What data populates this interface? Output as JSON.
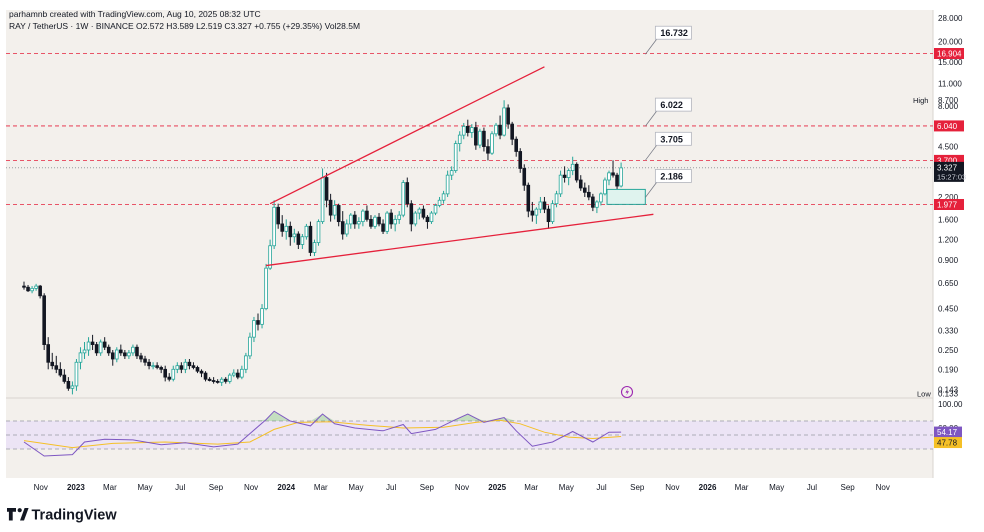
{
  "header": {
    "credit": "parhamnb created with TradingView.com, Aug 10, 2025 08:32 UTC",
    "symbol_line": "RAY / TetherUS · 1W · BINANCE  O2.572  H3.589  L2.519  C3.327  +0.755 (+29.35%)  Vol28.5M"
  },
  "footer": {
    "brand": "TradingView"
  },
  "colors": {
    "bull": "#26a69a",
    "bear": "#131722",
    "level": "#e5213b",
    "rsi": "#7e57c2",
    "rsi_ma": "#f5c026",
    "rsi_band": "#ece4f5",
    "box": "#26a69a"
  },
  "chart_data": {
    "type": "candlestick",
    "scale": "log",
    "ylim": [
      0.13,
      28
    ],
    "y_ticks": [
      "28.000",
      "20.000",
      "15.000",
      "11.000",
      "8.000",
      "6.000",
      "4.500",
      "3.300",
      "2.200",
      "1.600",
      "1.200",
      "0.900",
      "0.650",
      "0.450",
      "0.330",
      "0.250",
      "0.190",
      "0.143"
    ],
    "x_ticks": [
      "Nov",
      "2023",
      "Mar",
      "May",
      "Jul",
      "Sep",
      "Nov",
      "2024",
      "Mar",
      "May",
      "Jul",
      "Sep",
      "Nov",
      "2025",
      "Mar",
      "May",
      "Jul",
      "Sep",
      "Nov",
      "2026",
      "Mar",
      "May",
      "Jul",
      "Sep",
      "Nov"
    ],
    "price_labels": [
      {
        "label": "16.904",
        "value": 16.904
      },
      {
        "label": "6.040",
        "value": 6.04
      },
      {
        "label": "3.700",
        "value": 3.7
      },
      {
        "label": "1.977",
        "value": 1.977
      }
    ],
    "current": {
      "label": "3.327",
      "value": 3.327,
      "countdown": "15:27:03"
    },
    "high": {
      "text": "High",
      "value": "8.700"
    },
    "low": {
      "text": "Low",
      "value": "0.133"
    },
    "levels": [
      16.904,
      6.04,
      3.7,
      1.977
    ],
    "callouts": [
      {
        "text": "16.732",
        "value": 16.732
      },
      {
        "text": "6.022",
        "value": 6.022
      },
      {
        "text": "3.705",
        "value": 3.705
      },
      {
        "text": "2.186",
        "value": 2.186
      }
    ],
    "support_box": {
      "y_low": 1.98,
      "y_high": 2.45
    },
    "channel": {
      "upper": [
        [
          "2023-12-04",
          2.0
        ],
        [
          "2025-03-24",
          14.0
        ]
      ],
      "lower": [
        [
          "2023-11-27",
          0.83
        ],
        [
          "2025-09-29",
          1.72
        ]
      ]
    },
    "candles": [
      [
        "2022-10-03",
        0.62,
        0.66,
        0.59,
        0.61
      ],
      [
        "2022-10-10",
        0.61,
        0.63,
        0.57,
        0.58
      ],
      [
        "2022-10-17",
        0.58,
        0.62,
        0.56,
        0.6
      ],
      [
        "2022-10-24",
        0.6,
        0.64,
        0.58,
        0.62
      ],
      [
        "2022-10-31",
        0.62,
        0.63,
        0.52,
        0.54
      ],
      [
        "2022-11-07",
        0.54,
        0.56,
        0.25,
        0.27
      ],
      [
        "2022-11-14",
        0.27,
        0.3,
        0.19,
        0.21
      ],
      [
        "2022-11-21",
        0.21,
        0.24,
        0.19,
        0.2
      ],
      [
        "2022-11-28",
        0.2,
        0.23,
        0.18,
        0.19
      ],
      [
        "2022-12-05",
        0.19,
        0.21,
        0.17,
        0.175
      ],
      [
        "2022-12-12",
        0.175,
        0.19,
        0.155,
        0.16
      ],
      [
        "2022-12-19",
        0.16,
        0.17,
        0.14,
        0.145
      ],
      [
        "2022-12-26",
        0.145,
        0.16,
        0.133,
        0.15
      ],
      [
        "2023-01-02",
        0.15,
        0.22,
        0.14,
        0.21
      ],
      [
        "2023-01-09",
        0.21,
        0.26,
        0.19,
        0.24
      ],
      [
        "2023-01-16",
        0.24,
        0.28,
        0.22,
        0.25
      ],
      [
        "2023-01-23",
        0.25,
        0.3,
        0.23,
        0.28
      ],
      [
        "2023-01-30",
        0.28,
        0.31,
        0.25,
        0.27
      ],
      [
        "2023-02-06",
        0.27,
        0.28,
        0.23,
        0.24
      ],
      [
        "2023-02-13",
        0.24,
        0.29,
        0.23,
        0.28
      ],
      [
        "2023-02-20",
        0.28,
        0.3,
        0.25,
        0.26
      ],
      [
        "2023-02-27",
        0.26,
        0.27,
        0.23,
        0.24
      ],
      [
        "2023-03-06",
        0.24,
        0.25,
        0.2,
        0.22
      ],
      [
        "2023-03-13",
        0.22,
        0.26,
        0.21,
        0.25
      ],
      [
        "2023-03-20",
        0.25,
        0.27,
        0.23,
        0.24
      ],
      [
        "2023-03-27",
        0.24,
        0.25,
        0.22,
        0.23
      ],
      [
        "2023-04-03",
        0.23,
        0.25,
        0.22,
        0.24
      ],
      [
        "2023-04-10",
        0.24,
        0.27,
        0.23,
        0.26
      ],
      [
        "2023-04-17",
        0.26,
        0.27,
        0.22,
        0.23
      ],
      [
        "2023-04-24",
        0.23,
        0.24,
        0.21,
        0.22
      ],
      [
        "2023-05-01",
        0.22,
        0.23,
        0.2,
        0.21
      ],
      [
        "2023-05-08",
        0.21,
        0.22,
        0.19,
        0.2
      ],
      [
        "2023-05-15",
        0.2,
        0.21,
        0.19,
        0.2
      ],
      [
        "2023-05-22",
        0.2,
        0.21,
        0.19,
        0.195
      ],
      [
        "2023-05-29",
        0.195,
        0.2,
        0.18,
        0.19
      ],
      [
        "2023-06-05",
        0.19,
        0.2,
        0.16,
        0.17
      ],
      [
        "2023-06-12",
        0.17,
        0.18,
        0.16,
        0.165
      ],
      [
        "2023-06-19",
        0.165,
        0.2,
        0.16,
        0.19
      ],
      [
        "2023-06-26",
        0.19,
        0.21,
        0.18,
        0.2
      ],
      [
        "2023-07-03",
        0.2,
        0.21,
        0.18,
        0.19
      ],
      [
        "2023-07-10",
        0.19,
        0.22,
        0.18,
        0.21
      ],
      [
        "2023-07-17",
        0.21,
        0.22,
        0.19,
        0.2
      ],
      [
        "2023-07-24",
        0.2,
        0.21,
        0.19,
        0.195
      ],
      [
        "2023-07-31",
        0.195,
        0.2,
        0.18,
        0.185
      ],
      [
        "2023-08-07",
        0.185,
        0.19,
        0.17,
        0.18
      ],
      [
        "2023-08-14",
        0.18,
        0.185,
        0.16,
        0.165
      ],
      [
        "2023-08-21",
        0.165,
        0.17,
        0.16,
        0.162
      ],
      [
        "2023-08-28",
        0.162,
        0.17,
        0.155,
        0.16
      ],
      [
        "2023-09-04",
        0.16,
        0.165,
        0.155,
        0.158
      ],
      [
        "2023-09-11",
        0.158,
        0.17,
        0.15,
        0.165
      ],
      [
        "2023-09-18",
        0.165,
        0.17,
        0.155,
        0.16
      ],
      [
        "2023-09-25",
        0.16,
        0.18,
        0.155,
        0.175
      ],
      [
        "2023-10-02",
        0.175,
        0.19,
        0.17,
        0.18
      ],
      [
        "2023-10-09",
        0.18,
        0.19,
        0.165,
        0.17
      ],
      [
        "2023-10-16",
        0.17,
        0.2,
        0.165,
        0.19
      ],
      [
        "2023-10-23",
        0.19,
        0.24,
        0.18,
        0.23
      ],
      [
        "2023-10-30",
        0.23,
        0.32,
        0.22,
        0.3
      ],
      [
        "2023-11-06",
        0.3,
        0.4,
        0.28,
        0.38
      ],
      [
        "2023-11-13",
        0.38,
        0.42,
        0.33,
        0.36
      ],
      [
        "2023-11-20",
        0.36,
        0.48,
        0.34,
        0.45
      ],
      [
        "2023-11-27",
        0.45,
        0.85,
        0.44,
        0.8
      ],
      [
        "2023-12-04",
        0.8,
        1.2,
        0.78,
        1.1
      ],
      [
        "2023-12-11",
        1.1,
        2.1,
        1.05,
        1.9
      ],
      [
        "2023-12-18",
        1.9,
        2.0,
        1.4,
        1.5
      ],
      [
        "2023-12-25",
        1.5,
        1.7,
        1.25,
        1.35
      ],
      [
        "2024-01-01",
        1.35,
        1.6,
        1.2,
        1.45
      ],
      [
        "2024-01-08",
        1.45,
        1.55,
        1.1,
        1.25
      ],
      [
        "2024-01-15",
        1.25,
        1.4,
        1.15,
        1.3
      ],
      [
        "2024-01-22",
        1.3,
        1.35,
        1.05,
        1.12
      ],
      [
        "2024-01-29",
        1.12,
        1.3,
        1.05,
        1.25
      ],
      [
        "2024-02-05",
        1.25,
        1.5,
        1.2,
        1.45
      ],
      [
        "2024-02-12",
        1.45,
        1.55,
        0.95,
        1.0
      ],
      [
        "2024-02-19",
        1.0,
        1.2,
        0.95,
        1.15
      ],
      [
        "2024-02-26",
        1.15,
        1.6,
        1.1,
        1.55
      ],
      [
        "2024-03-04",
        1.55,
        3.3,
        1.5,
        2.9
      ],
      [
        "2024-03-11",
        2.9,
        3.1,
        1.9,
        2.1
      ],
      [
        "2024-03-18",
        2.1,
        2.3,
        1.55,
        1.7
      ],
      [
        "2024-03-25",
        1.7,
        2.1,
        1.6,
        1.95
      ],
      [
        "2024-04-01",
        1.95,
        2.0,
        1.45,
        1.55
      ],
      [
        "2024-04-08",
        1.55,
        1.8,
        1.2,
        1.3
      ],
      [
        "2024-04-15",
        1.3,
        1.6,
        1.25,
        1.5
      ],
      [
        "2024-04-22",
        1.5,
        1.75,
        1.4,
        1.7
      ],
      [
        "2024-04-29",
        1.7,
        1.8,
        1.4,
        1.5
      ],
      [
        "2024-05-06",
        1.5,
        1.65,
        1.4,
        1.55
      ],
      [
        "2024-05-13",
        1.55,
        1.85,
        1.45,
        1.8
      ],
      [
        "2024-05-20",
        1.8,
        1.95,
        1.55,
        1.6
      ],
      [
        "2024-05-27",
        1.6,
        1.7,
        1.4,
        1.45
      ],
      [
        "2024-06-03",
        1.45,
        1.7,
        1.4,
        1.65
      ],
      [
        "2024-06-10",
        1.65,
        1.75,
        1.45,
        1.5
      ],
      [
        "2024-06-17",
        1.5,
        1.6,
        1.3,
        1.35
      ],
      [
        "2024-06-24",
        1.35,
        1.8,
        1.3,
        1.75
      ],
      [
        "2024-07-01",
        1.75,
        1.85,
        1.4,
        1.5
      ],
      [
        "2024-07-08",
        1.5,
        1.7,
        1.35,
        1.6
      ],
      [
        "2024-07-15",
        1.6,
        1.8,
        1.5,
        1.7
      ],
      [
        "2024-07-22",
        1.7,
        2.8,
        1.65,
        2.7
      ],
      [
        "2024-07-29",
        2.7,
        2.9,
        1.9,
        2.0
      ],
      [
        "2024-08-05",
        2.0,
        2.1,
        1.35,
        1.5
      ],
      [
        "2024-08-12",
        1.5,
        1.8,
        1.45,
        1.75
      ],
      [
        "2024-08-19",
        1.75,
        1.9,
        1.6,
        1.85
      ],
      [
        "2024-08-26",
        1.85,
        1.95,
        1.6,
        1.65
      ],
      [
        "2024-09-02",
        1.65,
        1.7,
        1.4,
        1.55
      ],
      [
        "2024-09-09",
        1.55,
        1.8,
        1.5,
        1.75
      ],
      [
        "2024-09-16",
        1.75,
        2.0,
        1.7,
        1.95
      ],
      [
        "2024-09-23",
        1.95,
        2.2,
        1.9,
        2.1
      ],
      [
        "2024-09-30",
        2.1,
        2.4,
        2.0,
        2.3
      ],
      [
        "2024-10-07",
        2.3,
        3.2,
        2.2,
        3.0
      ],
      [
        "2024-10-14",
        3.0,
        3.4,
        2.8,
        3.2
      ],
      [
        "2024-10-21",
        3.2,
        4.9,
        3.1,
        4.7
      ],
      [
        "2024-10-28",
        4.7,
        5.6,
        4.2,
        5.3
      ],
      [
        "2024-11-04",
        5.3,
        6.3,
        5.0,
        6.0
      ],
      [
        "2024-11-11",
        6.0,
        6.6,
        5.2,
        5.5
      ],
      [
        "2024-11-18",
        5.5,
        6.2,
        5.1,
        5.9
      ],
      [
        "2024-11-25",
        5.9,
        6.4,
        4.3,
        4.6
      ],
      [
        "2024-12-02",
        4.6,
        5.8,
        4.4,
        5.6
      ],
      [
        "2024-12-09",
        5.6,
        5.9,
        4.2,
        4.5
      ],
      [
        "2024-12-16",
        4.5,
        5.0,
        3.7,
        4.1
      ],
      [
        "2024-12-23",
        4.1,
        5.6,
        4.0,
        5.4
      ],
      [
        "2024-12-30",
        5.4,
        6.3,
        5.2,
        6.1
      ],
      [
        "2025-01-06",
        6.1,
        7.0,
        5.0,
        5.3
      ],
      [
        "2025-01-13",
        5.3,
        8.7,
        5.2,
        7.8
      ],
      [
        "2025-01-20",
        7.8,
        8.2,
        5.8,
        6.2
      ],
      [
        "2025-01-27",
        6.2,
        6.4,
        4.6,
        5.0
      ],
      [
        "2025-02-03",
        5.0,
        5.2,
        3.9,
        4.2
      ],
      [
        "2025-02-10",
        4.2,
        4.4,
        3.1,
        3.3
      ],
      [
        "2025-02-17",
        3.3,
        3.5,
        2.4,
        2.6
      ],
      [
        "2025-02-24",
        2.6,
        2.7,
        1.65,
        1.8
      ],
      [
        "2025-03-03",
        1.8,
        2.05,
        1.55,
        1.7
      ],
      [
        "2025-03-10",
        1.7,
        1.9,
        1.5,
        1.85
      ],
      [
        "2025-03-17",
        1.85,
        2.2,
        1.75,
        2.05
      ],
      [
        "2025-03-24",
        2.05,
        2.2,
        1.75,
        1.85
      ],
      [
        "2025-03-31",
        1.85,
        1.95,
        1.4,
        1.55
      ],
      [
        "2025-04-07",
        1.55,
        2.1,
        1.5,
        2.0
      ],
      [
        "2025-04-14",
        2.0,
        2.4,
        1.9,
        2.3
      ],
      [
        "2025-04-21",
        2.3,
        3.2,
        2.2,
        3.0
      ],
      [
        "2025-04-28",
        3.0,
        3.4,
        2.7,
        2.9
      ],
      [
        "2025-05-05",
        2.9,
        3.3,
        2.6,
        3.2
      ],
      [
        "2025-05-12",
        3.2,
        3.9,
        3.0,
        3.5
      ],
      [
        "2025-05-19",
        3.5,
        3.6,
        2.7,
        2.8
      ],
      [
        "2025-05-26",
        2.8,
        3.0,
        2.4,
        2.5
      ],
      [
        "2025-06-02",
        2.5,
        2.7,
        2.2,
        2.35
      ],
      [
        "2025-06-09",
        2.35,
        2.6,
        2.1,
        2.2
      ],
      [
        "2025-06-16",
        2.2,
        2.3,
        1.8,
        1.9
      ],
      [
        "2025-06-23",
        1.9,
        2.1,
        1.75,
        2.05
      ],
      [
        "2025-06-30",
        2.05,
        2.35,
        1.95,
        2.3
      ],
      [
        "2025-07-07",
        2.3,
        2.9,
        2.25,
        2.8
      ],
      [
        "2025-07-14",
        2.8,
        3.2,
        2.6,
        3.1
      ],
      [
        "2025-07-21",
        3.1,
        3.7,
        2.9,
        3.0
      ],
      [
        "2025-07-28",
        3.0,
        3.1,
        2.4,
        2.57
      ],
      [
        "2025-08-04",
        2.572,
        3.589,
        2.519,
        3.327
      ]
    ],
    "rsi": {
      "values": [
        "54.17",
        "47.78"
      ],
      "ticks": [
        "100.00",
        "60.00"
      ],
      "ylim": [
        0,
        100
      ],
      "band": [
        30,
        70
      ],
      "line": [
        [
          "2022-10-03",
          40
        ],
        [
          "2022-11-07",
          20
        ],
        [
          "2022-12-26",
          22
        ],
        [
          "2023-01-16",
          40
        ],
        [
          "2023-02-20",
          44
        ],
        [
          "2023-04-10",
          43
        ],
        [
          "2023-05-29",
          36
        ],
        [
          "2023-07-10",
          39
        ],
        [
          "2023-08-28",
          33
        ],
        [
          "2023-10-09",
          37
        ],
        [
          "2023-10-30",
          52
        ],
        [
          "2023-11-27",
          72
        ],
        [
          "2023-12-11",
          84
        ],
        [
          "2024-01-08",
          70
        ],
        [
          "2024-02-12",
          63
        ],
        [
          "2024-03-04",
          80
        ],
        [
          "2024-03-25",
          66
        ],
        [
          "2024-04-29",
          60
        ],
        [
          "2024-06-17",
          56
        ],
        [
          "2024-07-22",
          65
        ],
        [
          "2024-08-05",
          52
        ],
        [
          "2024-09-16",
          58
        ],
        [
          "2024-10-21",
          72
        ],
        [
          "2024-11-11",
          80
        ],
        [
          "2024-12-09",
          68
        ],
        [
          "2025-01-13",
          75
        ],
        [
          "2025-02-03",
          56
        ],
        [
          "2025-03-03",
          34
        ],
        [
          "2025-04-07",
          40
        ],
        [
          "2025-05-12",
          55
        ],
        [
          "2025-06-16",
          40
        ],
        [
          "2025-07-14",
          54
        ],
        [
          "2025-08-04",
          54.17
        ]
      ],
      "ma": [
        [
          "2022-10-03",
          42
        ],
        [
          "2022-12-26",
          32
        ],
        [
          "2023-03-06",
          38
        ],
        [
          "2023-06-05",
          40
        ],
        [
          "2023-09-04",
          37
        ],
        [
          "2023-10-30",
          40
        ],
        [
          "2023-12-11",
          58
        ],
        [
          "2024-01-22",
          68
        ],
        [
          "2024-03-18",
          69
        ],
        [
          "2024-05-20",
          64
        ],
        [
          "2024-07-22",
          60
        ],
        [
          "2024-09-30",
          61
        ],
        [
          "2024-11-25",
          68
        ],
        [
          "2025-01-06",
          71
        ],
        [
          "2025-02-10",
          66
        ],
        [
          "2025-03-24",
          54
        ],
        [
          "2025-05-05",
          47
        ],
        [
          "2025-06-16",
          45
        ],
        [
          "2025-08-04",
          47.78
        ]
      ]
    }
  }
}
